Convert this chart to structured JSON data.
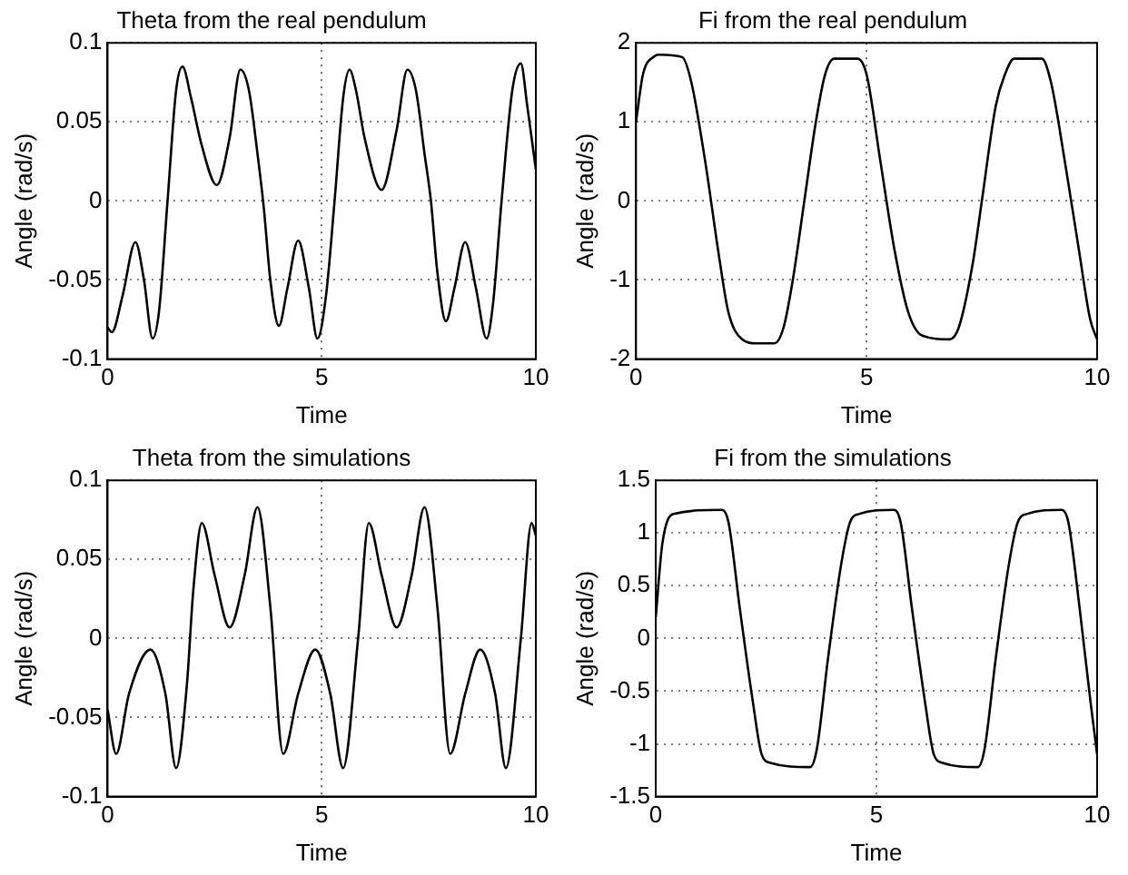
{
  "chart_data": [
    {
      "type": "line",
      "title": "Theta from the real pendulum",
      "xlabel": "Time",
      "ylabel": "Angle (rad/s)",
      "color": "#000000",
      "marker": "none",
      "grid": true,
      "xlim": [
        0,
        10
      ],
      "xticks": [
        0,
        5,
        10
      ],
      "ylim": [
        -0.1,
        0.1
      ],
      "yticks": [
        -0.1,
        -0.05,
        0,
        0.05,
        0.1
      ],
      "x": [
        0,
        0.1,
        0.35,
        0.65,
        0.85,
        1.05,
        1.2,
        1.4,
        1.6,
        1.75,
        1.95,
        2.2,
        2.55,
        2.85,
        3.1,
        3.3,
        3.5,
        3.65,
        3.8,
        4.0,
        4.2,
        4.45,
        4.7,
        4.9,
        5.1,
        5.3,
        5.5,
        5.65,
        5.8,
        6.0,
        6.4,
        6.75,
        7.0,
        7.2,
        7.4,
        7.55,
        7.7,
        7.9,
        8.1,
        8.35,
        8.6,
        8.85,
        9.0,
        9.2,
        9.45,
        9.65,
        9.8,
        10
      ],
      "values": [
        -0.08,
        -0.083,
        -0.06,
        -0.026,
        -0.05,
        -0.087,
        -0.07,
        0,
        0.07,
        0.085,
        0.065,
        0.035,
        0.01,
        0.04,
        0.083,
        0.07,
        0.03,
        -0.005,
        -0.05,
        -0.079,
        -0.055,
        -0.025,
        -0.055,
        -0.087,
        -0.06,
        0,
        0.065,
        0.083,
        0.07,
        0.04,
        0.007,
        0.045,
        0.083,
        0.07,
        0.03,
        0,
        -0.045,
        -0.076,
        -0.055,
        -0.026,
        -0.055,
        -0.087,
        -0.065,
        0,
        0.07,
        0.087,
        0.06,
        0.02
      ]
    },
    {
      "type": "line",
      "title": "Fi from the real pendulum",
      "xlabel": "Time",
      "ylabel": "Angle (rad/s)",
      "color": "#000000",
      "marker": "none",
      "grid": true,
      "xlim": [
        0,
        10
      ],
      "xticks": [
        0,
        5,
        10
      ],
      "ylim": [
        -2,
        2
      ],
      "yticks": [
        -2,
        -1,
        0,
        1,
        2
      ],
      "x": [
        0,
        0.15,
        0.4,
        0.5,
        1.0,
        1.2,
        1.5,
        1.8,
        2.0,
        2.3,
        2.6,
        3.0,
        3.2,
        3.4,
        3.65,
        3.9,
        4.1,
        4.3,
        4.8,
        5.0,
        5.3,
        5.6,
        5.9,
        6.2,
        6.8,
        7.0,
        7.3,
        7.5,
        7.8,
        8.0,
        8.2,
        8.8,
        9.0,
        9.3,
        9.6,
        9.85,
        10
      ],
      "values": [
        1.0,
        1.6,
        1.83,
        1.85,
        1.82,
        1.5,
        0.5,
        -0.7,
        -1.4,
        -1.75,
        -1.8,
        -1.8,
        -1.6,
        -1.0,
        0,
        1.0,
        1.6,
        1.8,
        1.8,
        1.6,
        0.5,
        -0.6,
        -1.4,
        -1.7,
        -1.75,
        -1.6,
        -0.8,
        0,
        1.2,
        1.6,
        1.8,
        1.8,
        1.5,
        0.5,
        -0.6,
        -1.5,
        -1.75
      ]
    },
    {
      "type": "line",
      "title": "Theta from the simulations",
      "xlabel": "Time",
      "ylabel": "Angle (rad/s)",
      "color": "#000000",
      "marker": "none",
      "grid": true,
      "xlim": [
        0,
        10
      ],
      "xticks": [
        0,
        5,
        10
      ],
      "ylim": [
        -0.1,
        0.1
      ],
      "yticks": [
        -0.1,
        -0.05,
        0,
        0.05,
        0.1
      ],
      "x": [
        0,
        0.2,
        0.5,
        1.0,
        1.35,
        1.6,
        1.85,
        2.0,
        2.2,
        2.5,
        2.85,
        3.2,
        3.5,
        3.8,
        4.1,
        4.45,
        4.85,
        5.2,
        5.5,
        5.85,
        6.1,
        6.4,
        6.75,
        7.1,
        7.4,
        7.7,
        8.0,
        8.35,
        8.7,
        9.05,
        9.3,
        9.65,
        9.9,
        10
      ],
      "values": [
        -0.045,
        -0.073,
        -0.035,
        -0.007,
        -0.035,
        -0.082,
        -0.03,
        0.03,
        0.073,
        0.04,
        0.007,
        0.04,
        0.083,
        0.02,
        -0.073,
        -0.035,
        -0.007,
        -0.035,
        -0.082,
        0,
        0.073,
        0.04,
        0.007,
        0.04,
        0.083,
        0.02,
        -0.073,
        -0.035,
        -0.007,
        -0.035,
        -0.082,
        0,
        0.073,
        0.065
      ]
    },
    {
      "type": "line",
      "title": "Fi from the simulations",
      "xlabel": "Time",
      "ylabel": "Angle (rad/s)",
      "color": "#000000",
      "marker": "none",
      "grid": true,
      "xlim": [
        0,
        10
      ],
      "xticks": [
        0,
        5,
        10
      ],
      "ylim": [
        -1.5,
        1.5
      ],
      "yticks": [
        -1.5,
        -1,
        -0.5,
        0,
        0.5,
        1,
        1.5
      ],
      "x": [
        0,
        0.15,
        0.4,
        1.5,
        1.65,
        1.9,
        2.2,
        2.4,
        2.6,
        3.5,
        3.65,
        3.9,
        4.2,
        4.4,
        4.6,
        5.4,
        5.55,
        5.8,
        6.1,
        6.3,
        6.5,
        7.3,
        7.45,
        7.7,
        8.0,
        8.2,
        8.4,
        9.2,
        9.35,
        9.6,
        9.85,
        10
      ],
      "values": [
        0.2,
        0.9,
        1.18,
        1.22,
        1.1,
        0.3,
        -0.6,
        -1.1,
        -1.18,
        -1.22,
        -1.05,
        -0.2,
        0.7,
        1.1,
        1.18,
        1.22,
        1.1,
        0.3,
        -0.6,
        -1.1,
        -1.18,
        -1.22,
        -1.05,
        -0.2,
        0.7,
        1.1,
        1.18,
        1.22,
        1.1,
        0.3,
        -0.6,
        -1.1
      ]
    }
  ]
}
